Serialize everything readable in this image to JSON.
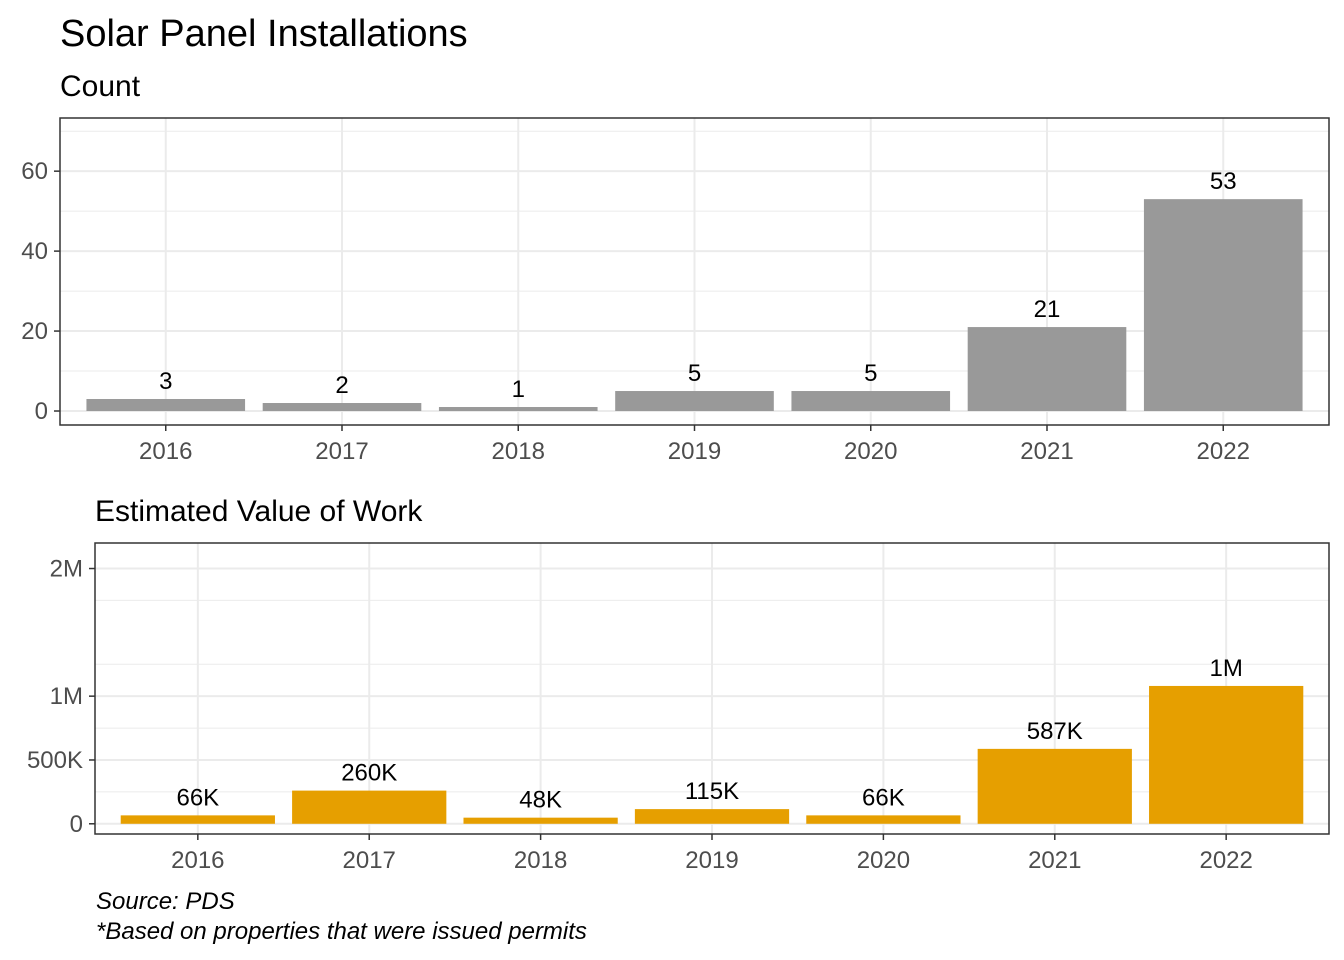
{
  "title": "Solar Panel Installations",
  "caption_lines": [
    "Source: PDS",
    "*Based on properties that were issued permits"
  ],
  "colors": {
    "count_bar": "#999999",
    "value_bar": "#E69F00",
    "grid": "#ebebeb",
    "panel_border": "#333333"
  },
  "chart_data": [
    {
      "type": "bar",
      "title": "Count",
      "categories": [
        "2016",
        "2017",
        "2018",
        "2019",
        "2020",
        "2021",
        "2022"
      ],
      "values": [
        3,
        2,
        1,
        5,
        5,
        21,
        53
      ],
      "data_labels": [
        "3",
        "2",
        "1",
        "5",
        "5",
        "21",
        "53"
      ],
      "y_ticks": [
        0,
        20,
        40,
        60
      ],
      "y_tick_labels": [
        "0",
        "20",
        "40",
        "60"
      ],
      "ylim": [
        -3.5,
        73.3
      ],
      "grid": true,
      "legend": "none"
    },
    {
      "type": "bar",
      "title": "Estimated Value of Work",
      "categories": [
        "2016",
        "2017",
        "2018",
        "2019",
        "2020",
        "2021",
        "2022"
      ],
      "values": [
        66000,
        260000,
        48000,
        115000,
        66000,
        587000,
        1080000
      ],
      "data_labels": [
        "66K",
        "260K",
        "48K",
        "115K",
        "66K",
        "587K",
        "1M"
      ],
      "y_ticks": [
        0,
        500000,
        1000000,
        2000000
      ],
      "y_tick_labels": [
        "0",
        "500K",
        "1M",
        "2M"
      ],
      "ylim": [
        -80000,
        2200000
      ],
      "grid": true,
      "legend": "none"
    }
  ]
}
